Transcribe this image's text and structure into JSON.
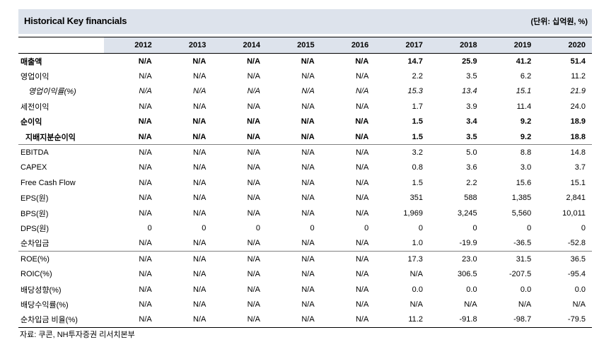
{
  "header": {
    "title": "Historical Key financials",
    "unit": "(단위: 십억원, %)"
  },
  "table": {
    "years": [
      "2012",
      "2013",
      "2014",
      "2015",
      "2016",
      "2017",
      "2018",
      "2019",
      "2020"
    ],
    "rows": [
      {
        "label": "매출액",
        "values": [
          "N/A",
          "N/A",
          "N/A",
          "N/A",
          "N/A",
          "14.7",
          "25.9",
          "41.2",
          "51.4"
        ]
      },
      {
        "label": "영업이익",
        "values": [
          "N/A",
          "N/A",
          "N/A",
          "N/A",
          "N/A",
          "2.2",
          "3.5",
          "6.2",
          "11.2"
        ]
      },
      {
        "label": "영업이익률(%)",
        "values": [
          "N/A",
          "N/A",
          "N/A",
          "N/A",
          "N/A",
          "15.3",
          "13.4",
          "15.1",
          "21.9"
        ]
      },
      {
        "label": "세전이익",
        "values": [
          "N/A",
          "N/A",
          "N/A",
          "N/A",
          "N/A",
          "1.7",
          "3.9",
          "11.4",
          "24.0"
        ]
      },
      {
        "label": "순이익",
        "values": [
          "N/A",
          "N/A",
          "N/A",
          "N/A",
          "N/A",
          "1.5",
          "3.4",
          "9.2",
          "18.9"
        ]
      },
      {
        "label": "지배지분순이익",
        "values": [
          "N/A",
          "N/A",
          "N/A",
          "N/A",
          "N/A",
          "1.5",
          "3.5",
          "9.2",
          "18.8"
        ]
      },
      {
        "label": "EBITDA",
        "values": [
          "N/A",
          "N/A",
          "N/A",
          "N/A",
          "N/A",
          "3.2",
          "5.0",
          "8.8",
          "14.8"
        ]
      },
      {
        "label": "CAPEX",
        "values": [
          "N/A",
          "N/A",
          "N/A",
          "N/A",
          "N/A",
          "0.8",
          "3.6",
          "3.0",
          "3.7"
        ]
      },
      {
        "label": "Free Cash Flow",
        "values": [
          "N/A",
          "N/A",
          "N/A",
          "N/A",
          "N/A",
          "1.5",
          "2.2",
          "15.6",
          "15.1"
        ]
      },
      {
        "label": "EPS(원)",
        "values": [
          "N/A",
          "N/A",
          "N/A",
          "N/A",
          "N/A",
          "351",
          "588",
          "1,385",
          "2,841"
        ]
      },
      {
        "label": "BPS(원)",
        "values": [
          "N/A",
          "N/A",
          "N/A",
          "N/A",
          "N/A",
          "1,969",
          "3,245",
          "5,560",
          "10,011"
        ]
      },
      {
        "label": "DPS(원)",
        "values": [
          "0",
          "0",
          "0",
          "0",
          "0",
          "0",
          "0",
          "0",
          "0"
        ]
      },
      {
        "label": "순차입금",
        "values": [
          "N/A",
          "N/A",
          "N/A",
          "N/A",
          "N/A",
          "1.0",
          "-19.9",
          "-36.5",
          "-52.8"
        ]
      },
      {
        "label": "ROE(%)",
        "values": [
          "N/A",
          "N/A",
          "N/A",
          "N/A",
          "N/A",
          "17.3",
          "23.0",
          "31.5",
          "36.5"
        ]
      },
      {
        "label": "ROIC(%)",
        "values": [
          "N/A",
          "N/A",
          "N/A",
          "N/A",
          "N/A",
          "N/A",
          "306.5",
          "-207.5",
          "-95.4"
        ]
      },
      {
        "label": "배당성향(%)",
        "values": [
          "N/A",
          "N/A",
          "N/A",
          "N/A",
          "N/A",
          "0.0",
          "0.0",
          "0.0",
          "0.0"
        ]
      },
      {
        "label": "배당수익률(%)",
        "values": [
          "N/A",
          "N/A",
          "N/A",
          "N/A",
          "N/A",
          "N/A",
          "N/A",
          "N/A",
          "N/A"
        ]
      },
      {
        "label": "순차입금 비율(%)",
        "values": [
          "N/A",
          "N/A",
          "N/A",
          "N/A",
          "N/A",
          "11.2",
          "-91.8",
          "-98.7",
          "-79.5"
        ]
      }
    ]
  },
  "footer": {
    "source": "자료: 쿠콘, NH투자증권 리서치본부"
  }
}
